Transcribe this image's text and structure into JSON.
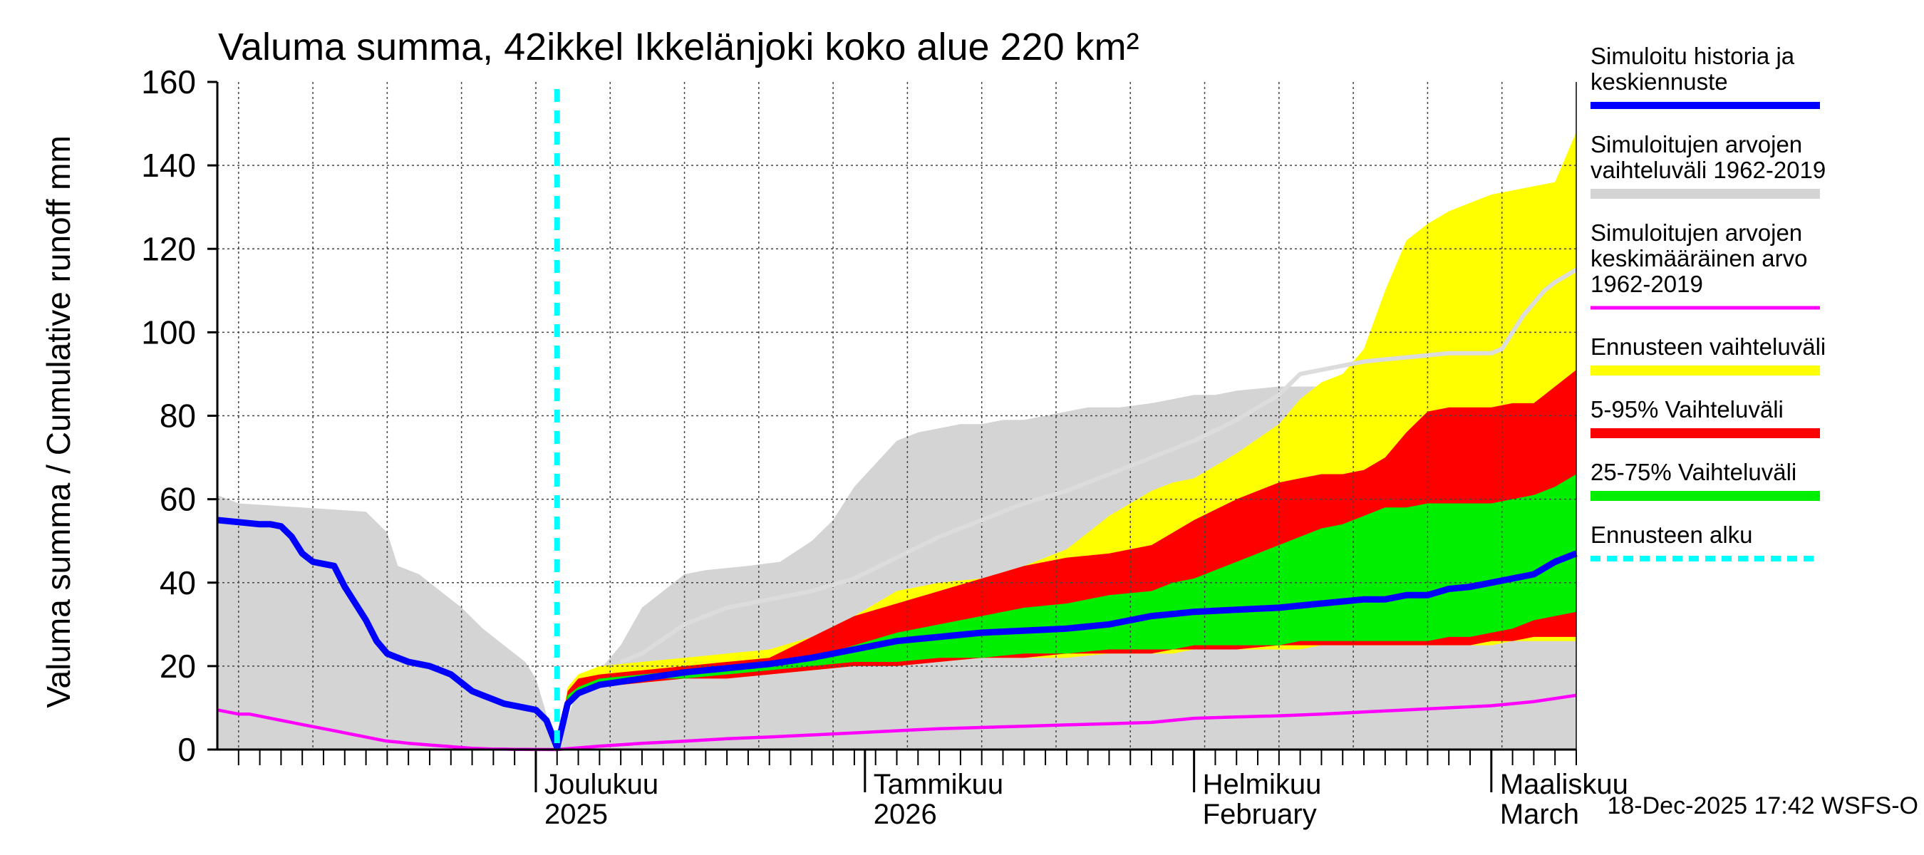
{
  "chart_data": {
    "type": "area",
    "title": "Valuma summa, 42ikkel Ikkelänjoki koko alue 220 km²",
    "ylabel": "Valuma summa / Cumulative runoff    mm",
    "ylim": [
      0,
      160
    ],
    "yticks": [
      0,
      20,
      40,
      60,
      80,
      100,
      120,
      140,
      160
    ],
    "xlim_day": [
      0,
      128
    ],
    "x_unit": "days since 1-Nov-2025",
    "forecast_start_day": 32,
    "month_ticks": [
      {
        "day": 30,
        "line1": "Joulukuu",
        "line2": "2025"
      },
      {
        "day": 61,
        "line1": "Tammikuu",
        "line2": "2026"
      },
      {
        "day": 92,
        "line1": "Helmikuu",
        "line2": "February"
      },
      {
        "day": 120,
        "line1": "Maaliskuu",
        "line2": "March"
      }
    ],
    "colors": {
      "history_range": "#d4d4d4",
      "forecast_range": "#ffff00",
      "p5_95": "#ff0000",
      "p25_75": "#00ee00",
      "median": "#0000ff",
      "mean": "#ff00ff",
      "mean_future": "#dcdcdc",
      "forecast_start": "#00ffff",
      "grid": "#444444"
    },
    "series": {
      "history_range": {
        "name": "Simuloitujen arvojen vaihteluväli 1962-2019",
        "x": [
          0,
          2,
          8,
          14,
          16,
          17,
          19,
          21,
          23,
          25,
          27,
          29,
          30,
          32,
          34,
          36,
          38,
          40,
          42,
          44,
          46,
          50,
          53,
          56,
          58,
          60,
          64,
          66,
          68,
          70,
          72,
          74,
          76,
          78,
          80,
          82,
          85,
          88,
          90,
          92,
          94,
          96,
          100,
          104,
          108,
          110,
          112,
          114,
          116,
          118,
          120,
          124,
          126,
          128
        ],
        "low": [
          0,
          0,
          0,
          0,
          0,
          0,
          0,
          0,
          0,
          0,
          0,
          0,
          0,
          0,
          0,
          0,
          0,
          0,
          0,
          0,
          0,
          0,
          0,
          0,
          0,
          0,
          0,
          0,
          0,
          0,
          0,
          0,
          0,
          0,
          0,
          0,
          0,
          0,
          0,
          0,
          0,
          0,
          0,
          0,
          0,
          0,
          0,
          0,
          0,
          0,
          0,
          0,
          0,
          0
        ],
        "high": [
          61,
          59,
          58,
          57,
          52,
          44,
          42,
          38,
          34,
          29,
          25,
          21,
          17,
          0,
          15,
          19,
          25,
          34,
          38,
          42,
          43,
          44,
          45,
          50,
          55,
          63,
          74,
          76,
          77,
          78,
          78,
          79,
          79,
          80,
          81,
          82,
          82,
          83,
          84,
          85,
          85,
          86,
          87,
          87,
          89,
          90,
          91,
          92,
          94,
          96,
          97,
          98,
          99,
          100
        ]
      },
      "forecast_range": {
        "name": "Ennusteen vaihteluväli",
        "x": [
          32,
          33,
          34,
          36,
          40,
          44,
          48,
          52,
          56,
          60,
          64,
          68,
          72,
          76,
          80,
          84,
          88,
          90,
          92,
          96,
          100,
          102,
          104,
          106,
          108,
          110,
          112,
          114,
          116,
          118,
          120,
          122,
          124,
          126,
          128
        ],
        "low": [
          0,
          10,
          13,
          15,
          16,
          17,
          18,
          18,
          19,
          20,
          21,
          21,
          22,
          22,
          22,
          23,
          23,
          23,
          24,
          24,
          24,
          24,
          25,
          25,
          25,
          25,
          25,
          25,
          25,
          25,
          25,
          26,
          26,
          26,
          26
        ],
        "high": [
          0,
          15,
          18,
          20,
          21,
          22,
          23,
          24,
          27,
          32,
          38,
          40,
          41,
          44,
          48,
          56,
          62,
          64,
          65,
          71,
          78,
          84,
          88,
          90,
          96,
          110,
          122,
          126,
          129,
          131,
          133,
          134,
          135,
          136,
          148
        ]
      },
      "p5_95": {
        "name": "5-95% Vaihteluväli",
        "x": [
          32,
          33,
          34,
          36,
          40,
          44,
          48,
          52,
          56,
          60,
          64,
          68,
          72,
          76,
          80,
          84,
          88,
          90,
          92,
          96,
          100,
          102,
          104,
          106,
          108,
          110,
          112,
          114,
          116,
          118,
          120,
          122,
          124,
          126,
          128
        ],
        "low": [
          0,
          11,
          13,
          15,
          16,
          17,
          17,
          18,
          19,
          20,
          20,
          21,
          22,
          22,
          23,
          23,
          23,
          24,
          24,
          24,
          25,
          25,
          25,
          25,
          25,
          25,
          25,
          25,
          25,
          25,
          26,
          26,
          27,
          27,
          27
        ],
        "high": [
          0,
          14,
          17,
          18,
          19,
          20,
          21,
          22,
          27,
          32,
          35,
          38,
          41,
          44,
          46,
          47,
          49,
          52,
          55,
          60,
          64,
          65,
          66,
          66,
          67,
          70,
          76,
          81,
          82,
          82,
          82,
          83,
          83,
          87,
          91
        ]
      },
      "p25_75": {
        "name": "25-75% Vaihteluväli",
        "x": [
          32,
          33,
          34,
          36,
          40,
          44,
          48,
          52,
          56,
          60,
          64,
          68,
          72,
          76,
          80,
          84,
          88,
          90,
          92,
          96,
          100,
          102,
          104,
          106,
          108,
          110,
          112,
          114,
          116,
          118,
          120,
          122,
          124,
          126,
          128
        ],
        "low": [
          0,
          12,
          14,
          16,
          17,
          17,
          18,
          19,
          20,
          21,
          21,
          22,
          22,
          23,
          23,
          24,
          24,
          24,
          25,
          25,
          25,
          26,
          26,
          26,
          26,
          26,
          26,
          26,
          27,
          27,
          28,
          29,
          31,
          32,
          33
        ],
        "high": [
          0,
          13,
          15,
          17,
          18,
          19,
          20,
          21,
          22,
          25,
          28,
          30,
          32,
          34,
          35,
          37,
          38,
          40,
          41,
          45,
          49,
          51,
          53,
          54,
          56,
          58,
          58,
          59,
          59,
          59,
          59,
          60,
          61,
          63,
          66
        ]
      },
      "median": {
        "name": "Simuloitu historia ja keskiennuste",
        "x": [
          0,
          2,
          4,
          5,
          6,
          7,
          8,
          9,
          10,
          11,
          12,
          13,
          14,
          15,
          16,
          17,
          18,
          19,
          20,
          21,
          22,
          23,
          24,
          25,
          26,
          27,
          28,
          29,
          30,
          31,
          32,
          33,
          34,
          36,
          40,
          44,
          48,
          52,
          56,
          60,
          64,
          68,
          72,
          76,
          80,
          84,
          88,
          90,
          92,
          96,
          100,
          104,
          106,
          108,
          110,
          112,
          114,
          116,
          118,
          120,
          122,
          124,
          126,
          128
        ],
        "values": [
          55,
          54.5,
          54,
          54,
          53.5,
          51,
          47,
          45,
          44.5,
          44,
          39,
          35,
          31,
          26,
          23,
          22,
          21,
          20.5,
          20,
          19,
          18,
          16,
          14,
          13,
          12,
          11,
          10.5,
          10,
          9.5,
          7,
          0.5,
          11,
          13.5,
          15.5,
          17,
          18.5,
          19.5,
          20.5,
          22,
          24,
          26,
          27,
          28,
          28.5,
          29,
          30,
          32,
          32.5,
          33,
          33.5,
          34,
          35,
          35.5,
          36,
          36,
          37,
          37,
          38.5,
          39,
          40,
          41,
          42,
          45,
          47
        ]
      },
      "mean": {
        "name": "Simuloitujen arvojen keskimääräinen arvo 1962-2019",
        "x": [
          0,
          1,
          2,
          3,
          4,
          5,
          6,
          7,
          8,
          9,
          10,
          11,
          12,
          13,
          14,
          15,
          16,
          17,
          18,
          19,
          20,
          21,
          22,
          23,
          24,
          25,
          26,
          27,
          28,
          29,
          30,
          31,
          32,
          36,
          40,
          44,
          48,
          52,
          56,
          60,
          64,
          68,
          72,
          76,
          80,
          84,
          88,
          90,
          92,
          96,
          100,
          104,
          108,
          112,
          116,
          120,
          124,
          128
        ],
        "values": [
          9.5,
          9,
          8.5,
          8.5,
          8,
          7.5,
          7,
          6.5,
          6,
          5.5,
          5,
          4.5,
          4,
          3.5,
          3,
          2.5,
          2,
          1.8,
          1.5,
          1.3,
          1.1,
          0.9,
          0.7,
          0.5,
          0.3,
          0.2,
          0.1,
          0.1,
          0.05,
          0.05,
          0.02,
          0.01,
          0,
          0.8,
          1.5,
          2,
          2.6,
          3,
          3.5,
          4,
          4.5,
          5,
          5.3,
          5.6,
          5.9,
          6.2,
          6.5,
          7,
          7.5,
          7.8,
          8.1,
          8.5,
          9,
          9.5,
          10,
          10.5,
          11.5,
          13
        ]
      },
      "mean_future": {
        "name": "Simuloitujen arvojen keskimääräinen arvo 1962-2019 (future)",
        "x": [
          38,
          40,
          44,
          48,
          52,
          56,
          60,
          64,
          68,
          72,
          76,
          80,
          84,
          88,
          92,
          96,
          100,
          102,
          104,
          106,
          108,
          110,
          112,
          114,
          116,
          118,
          120,
          121,
          122,
          123,
          124,
          125,
          126,
          128
        ],
        "values": [
          21,
          23,
          30,
          34,
          36,
          38,
          41,
          46,
          51,
          55,
          59,
          62,
          66,
          70,
          74,
          79,
          85,
          90,
          91,
          92,
          93,
          93.5,
          94,
          94.5,
          95,
          95,
          95,
          96,
          100,
          104,
          107,
          110,
          112,
          115
        ]
      }
    },
    "legend": [
      {
        "key": "median",
        "lines": [
          "Simuloitu historia ja",
          "keskiennuste"
        ],
        "color": "#0000ff"
      },
      {
        "key": "history_range",
        "lines": [
          "Simuloitujen arvojen",
          "vaihteluväli 1962-2019"
        ],
        "color": "#d4d4d4"
      },
      {
        "key": "mean",
        "lines": [
          "Simuloitujen arvojen",
          "keskimääräinen arvo",
          "  1962-2019"
        ],
        "color": "#ff00ff"
      },
      {
        "key": "forecast_range",
        "lines": [
          "Ennusteen vaihteluväli"
        ],
        "color": "#ffff00"
      },
      {
        "key": "p5_95",
        "lines": [
          "5-95% Vaihteluväli"
        ],
        "color": "#ff0000"
      },
      {
        "key": "p25_75",
        "lines": [
          "25-75% Vaihteluväli"
        ],
        "color": "#00ee00"
      },
      {
        "key": "forecast_start",
        "lines": [
          "Ennusteen alku"
        ],
        "color": "#00ffff"
      }
    ],
    "footer": "18-Dec-2025 17:42 WSFS-O"
  }
}
